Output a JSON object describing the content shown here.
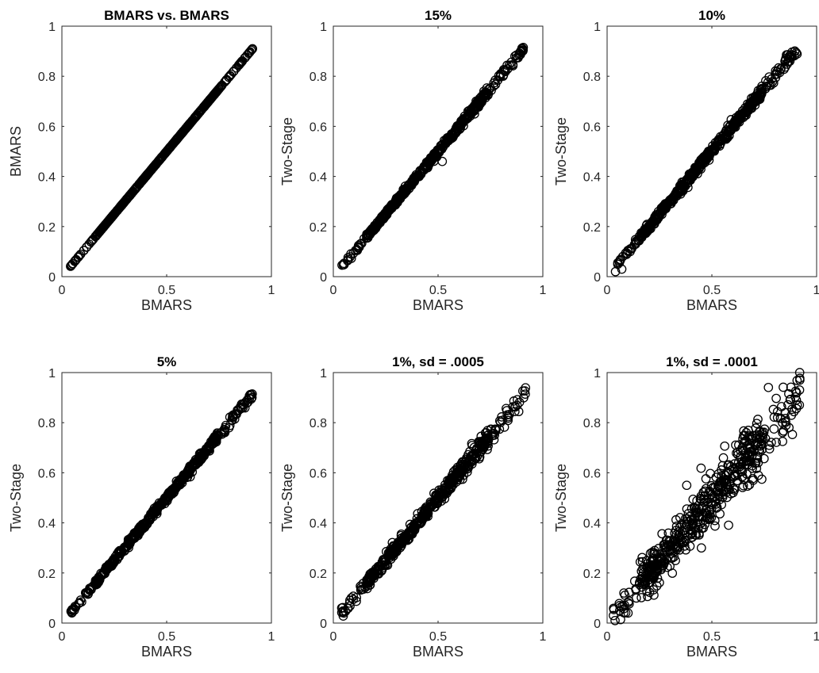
{
  "chart_data": [
    {
      "type": "scatter",
      "title": "BMARS vs. BMARS",
      "xlabel": "BMARS",
      "ylabel": "BMARS",
      "xlim": [
        0,
        1
      ],
      "ylim": [
        0,
        1
      ],
      "xticks": [
        "0",
        "0.5",
        "1"
      ],
      "yticks": [
        "0",
        "0.2",
        "0.4",
        "0.6",
        "0.8",
        "1"
      ],
      "marker": "open-circle",
      "range": [
        0.04,
        0.91
      ],
      "noise_sd": 0.0,
      "n_points": 520,
      "grid": false
    },
    {
      "type": "scatter",
      "title": "15%",
      "xlabel": "BMARS",
      "ylabel": "Two-Stage",
      "xlim": [
        0,
        1
      ],
      "ylim": [
        0,
        1
      ],
      "xticks": [
        "0",
        "0.5",
        "1"
      ],
      "yticks": [
        "0",
        "0.2",
        "0.4",
        "0.6",
        "0.8",
        "1"
      ],
      "marker": "open-circle",
      "range": [
        0.04,
        0.91
      ],
      "noise_sd": 0.006,
      "n_points": 520,
      "outliers": [
        [
          0.52,
          0.46
        ]
      ],
      "grid": false
    },
    {
      "type": "scatter",
      "title": "10%",
      "xlabel": "BMARS",
      "ylabel": "Two-Stage",
      "xlim": [
        0,
        1
      ],
      "ylim": [
        0,
        1
      ],
      "xticks": [
        "0",
        "0.5",
        "1"
      ],
      "yticks": [
        "0",
        "0.2",
        "0.4",
        "0.6",
        "0.8",
        "1"
      ],
      "marker": "open-circle",
      "range": [
        0.04,
        0.91
      ],
      "noise_sd": 0.009,
      "n_points": 520,
      "outliers": [
        [
          0.04,
          0.02
        ],
        [
          0.07,
          0.03
        ],
        [
          0.11,
          0.1
        ]
      ],
      "grid": false
    },
    {
      "type": "scatter",
      "title": "5%",
      "xlabel": "BMARS",
      "ylabel": "Two-Stage",
      "xlim": [
        0,
        1
      ],
      "ylim": [
        0,
        1
      ],
      "xticks": [
        "0",
        "0.5",
        "1"
      ],
      "yticks": [
        "0",
        "0.2",
        "0.4",
        "0.6",
        "0.8",
        "1"
      ],
      "marker": "open-circle",
      "range": [
        0.04,
        0.91
      ],
      "noise_sd": 0.007,
      "n_points": 520,
      "grid": false
    },
    {
      "type": "scatter",
      "title": "1%, sd = .0005",
      "xlabel": "BMARS",
      "ylabel": "Two-Stage",
      "xlim": [
        0,
        1
      ],
      "ylim": [
        0,
        1
      ],
      "xticks": [
        "0",
        "0.5",
        "1"
      ],
      "yticks": [
        "0",
        "0.2",
        "0.4",
        "0.6",
        "0.8",
        "1"
      ],
      "marker": "open-circle",
      "range": [
        0.04,
        0.92
      ],
      "noise_sd": 0.014,
      "n_points": 520,
      "outliers": [
        [
          0.04,
          0.06
        ],
        [
          0.05,
          0.04
        ]
      ],
      "grid": false
    },
    {
      "type": "scatter",
      "title": "1%, sd = .0001",
      "xlabel": "BMARS",
      "ylabel": "Two-Stage",
      "xlim": [
        0,
        1
      ],
      "ylim": [
        0,
        1
      ],
      "xticks": [
        "0",
        "0.5",
        "1"
      ],
      "yticks": [
        "0",
        "0.2",
        "0.4",
        "0.6",
        "0.8",
        "1"
      ],
      "marker": "open-circle",
      "range": [
        0.03,
        0.92
      ],
      "noise_sd": 0.045,
      "n_points": 520,
      "outliers": [
        [
          0.03,
          0.03
        ],
        [
          0.06,
          0.07
        ],
        [
          0.08,
          0.12
        ],
        [
          0.1,
          0.04
        ],
        [
          0.38,
          0.55
        ],
        [
          0.45,
          0.3
        ],
        [
          0.85,
          0.84
        ],
        [
          0.92,
          0.97
        ]
      ],
      "grid": false
    }
  ]
}
